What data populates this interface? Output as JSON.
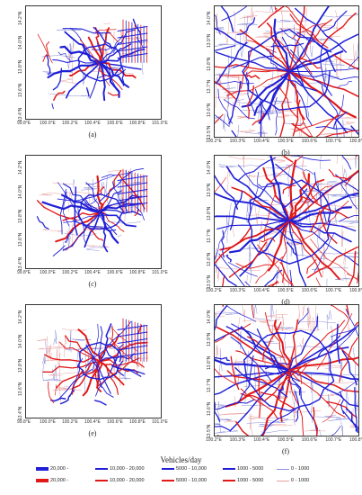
{
  "colors": {
    "blue": "#1f1fd6",
    "red": "#e01818",
    "grey_blue": "#8a8fd8",
    "grey_red": "#e8a0a0"
  },
  "panels": [
    {
      "id": "a",
      "caption": "(a)",
      "kind": "wide",
      "yticks": [
        "14.2°N",
        "14.0°N",
        "13.8°N",
        "13.6°N",
        "13.4°N"
      ],
      "xticks": [
        "99.8°E",
        "100.0°E",
        "100.2°E",
        "100.4°E",
        "100.6°E",
        "100.8°E",
        "101.0°E"
      ]
    },
    {
      "id": "b",
      "caption": "(b)",
      "kind": "zoom",
      "yticks": [
        "14.0°N",
        "13.9°N",
        "13.8°N",
        "13.7°N",
        "13.6°N",
        "13.5°N"
      ],
      "xticks": [
        "100.2°E",
        "100.3°E",
        "100.4°E",
        "100.5°E",
        "100.6°E",
        "100.7°E",
        "100.8°E"
      ]
    },
    {
      "id": "c",
      "caption": "(c)",
      "kind": "wide",
      "yticks": [
        "14.2°N",
        "14.0°N",
        "13.8°N",
        "13.6°N",
        "13.4°N"
      ],
      "xticks": [
        "99.8°E",
        "100.0°E",
        "100.2°E",
        "100.4°E",
        "100.6°E",
        "100.8°E",
        "101.0°E"
      ]
    },
    {
      "id": "d",
      "caption": "(d)",
      "kind": "zoom",
      "yticks": [
        "14.0°N",
        "13.9°N",
        "13.8°N",
        "13.7°N",
        "13.6°N",
        "13.5°N"
      ],
      "xticks": [
        "100.2°E",
        "100.3°E",
        "100.4°E",
        "100.5°E",
        "100.6°E",
        "100.7°E",
        "100.8°E"
      ]
    },
    {
      "id": "e",
      "caption": "(e)",
      "kind": "wide",
      "yticks": [
        "14.2°N",
        "14.0°N",
        "13.8°N",
        "13.6°N",
        "13.4°N"
      ],
      "xticks": [
        "99.8°E",
        "100.0°E",
        "100.2°E",
        "100.4°E",
        "100.6°E",
        "100.8°E",
        "101.0°E"
      ]
    },
    {
      "id": "f",
      "caption": "(f)",
      "kind": "zoom",
      "yticks": [
        "14.0°N",
        "13.9°N",
        "13.8°N",
        "13.7°N",
        "13.6°N",
        "13.5°N"
      ],
      "xticks": [
        "100.2°E",
        "100.3°E",
        "100.4°E",
        "100.5°E",
        "100.6°E",
        "100.7°E",
        "100.8°E"
      ]
    }
  ],
  "legend": {
    "title": "Vehicles/day",
    "rows": [
      [
        {
          "label": "20,000 -",
          "color": "blue",
          "weight": 3.2
        },
        {
          "label": "10,000 - 20,000",
          "color": "blue",
          "weight": 2.4
        },
        {
          "label": "5000 - 10,000",
          "color": "blue",
          "weight": 1.8
        },
        {
          "label": "1000 - 5000",
          "color": "blue",
          "weight": 1.2
        },
        {
          "label": "0 - 1000",
          "color": "grey_blue",
          "weight": 0.8
        }
      ],
      [
        {
          "label": "20,000 -",
          "color": "red",
          "weight": 3.2
        },
        {
          "label": "10,000 - 20,000",
          "color": "red",
          "weight": 2.4
        },
        {
          "label": "5000 - 10,000",
          "color": "red",
          "weight": 1.8
        },
        {
          "label": "1000 - 5000",
          "color": "red",
          "weight": 1.2
        },
        {
          "label": "0 - 1000",
          "color": "grey_red",
          "weight": 0.8
        }
      ]
    ]
  }
}
